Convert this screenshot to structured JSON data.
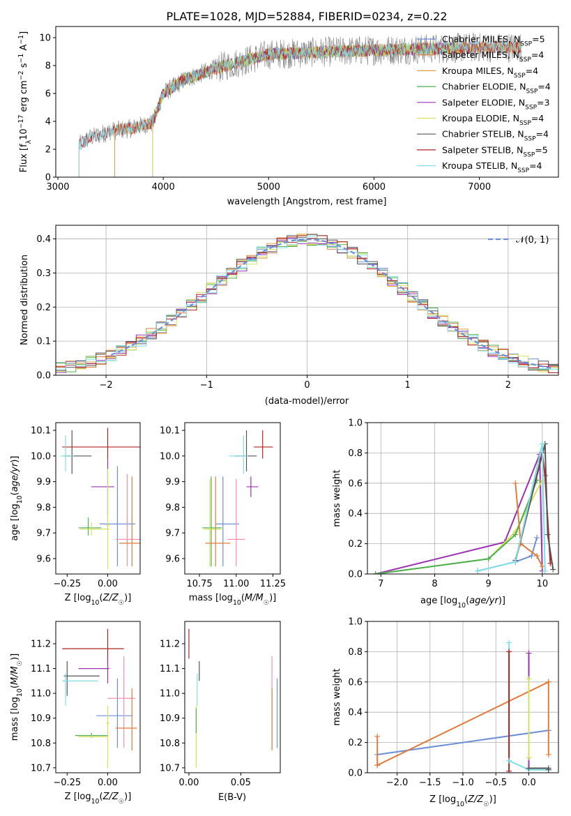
{
  "figure": {
    "title": "PLATE=1028, MJD=52884, FIBERID=0234, z=0.22",
    "colors": {
      "chabrier_miles": "#6a8fd8",
      "salpeter_miles": "#e07b39",
      "kroupa_miles": "#e0a040",
      "chabrier_elodie": "#4caf50",
      "salpeter_elodie": "#9b30b5",
      "kroupa_elodie": "#d4e157",
      "chabrier_stelib": "#555555",
      "salpeter_stelib": "#b22222",
      "kroupa_stelib": "#80deea",
      "pink": "#f48fb1",
      "grid": "#b0b0b0"
    }
  },
  "chart_data": [
    {
      "id": "spectrum",
      "type": "line",
      "xlabel": "wavelength [Angstrom, rest frame]",
      "ylabel": "Flux [fλ10⁻¹⁷ erg cm⁻² s⁻¹ A⁻¹]",
      "xlim": [
        2980,
        7750
      ],
      "ylim": [
        0,
        10.8
      ],
      "xticks": [
        "3000",
        "4000",
        "5000",
        "6000",
        "7000"
      ],
      "yticks": [
        "0",
        "2",
        "4",
        "6",
        "8",
        "10"
      ],
      "grid": false,
      "legend_position": "top-right",
      "legend": [
        {
          "label": "Chabrier MILES, N_SSP=5",
          "color": "chabrier_miles"
        },
        {
          "label": "Salpeter MILES, N_SSP=4",
          "color": "salpeter_miles"
        },
        {
          "label": "Kroupa MILES, N_SSP=4",
          "color": "kroupa_miles"
        },
        {
          "label": "Chabrier ELODIE, N_SSP=4",
          "color": "chabrier_elodie"
        },
        {
          "label": "Salpeter ELODIE, N_SSP=3",
          "color": "salpeter_elodie"
        },
        {
          "label": "Kroupa ELODIE, N_SSP=4",
          "color": "kroupa_elodie"
        },
        {
          "label": "Chabrier STELIB, N_SSP=4",
          "color": "chabrier_stelib"
        },
        {
          "label": "Salpeter STELIB, N_SSP=5",
          "color": "salpeter_stelib"
        },
        {
          "label": "Kroupa STELIB, N_SSP=4",
          "color": "kroupa_stelib"
        }
      ],
      "continuum": [
        [
          3200,
          2.3
        ],
        [
          3300,
          2.8
        ],
        [
          3500,
          3.3
        ],
        [
          3700,
          3.5
        ],
        [
          3900,
          3.9
        ],
        [
          4000,
          6.0
        ],
        [
          4200,
          7.0
        ],
        [
          4500,
          7.8
        ],
        [
          4800,
          8.4
        ],
        [
          5000,
          8.8
        ],
        [
          5300,
          8.9
        ],
        [
          5600,
          9.0
        ],
        [
          6000,
          9.1
        ],
        [
          6500,
          9.2
        ],
        [
          7000,
          9.3
        ],
        [
          7400,
          9.3
        ]
      ],
      "model_ranges": [
        {
          "color": "chabrier_miles",
          "x": [
            3540,
            7400
          ]
        },
        {
          "color": "salpeter_miles",
          "x": [
            3540,
            7400
          ]
        },
        {
          "color": "kroupa_miles",
          "x": [
            3540,
            7400
          ]
        },
        {
          "color": "chabrier_elodie",
          "x": [
            3900,
            6800
          ]
        },
        {
          "color": "salpeter_elodie",
          "x": [
            3900,
            6800
          ]
        },
        {
          "color": "kroupa_elodie",
          "x": [
            3900,
            6800
          ]
        },
        {
          "color": "salpeter_stelib",
          "x": [
            3200,
            7400
          ]
        },
        {
          "color": "kroupa_stelib",
          "x": [
            3200,
            7400
          ]
        }
      ]
    },
    {
      "id": "residuals",
      "type": "line",
      "xlabel": "(data-model)/error",
      "ylabel": "Normed distribution",
      "xlim": [
        -2.5,
        2.5
      ],
      "ylim": [
        0,
        0.44
      ],
      "xticks": [
        "−2",
        "−1",
        "0",
        "1",
        "2"
      ],
      "yticks": [
        "0.0",
        "0.1",
        "0.2",
        "0.3",
        "0.4"
      ],
      "grid": true,
      "legend_position": "top-right",
      "legend": [
        {
          "label": "𝒩(0, 1)",
          "color": "chabrier_miles",
          "style": "dashed"
        }
      ],
      "bin_width": 0.1,
      "histogram_colors": [
        "chabrier_miles",
        "salpeter_miles",
        "kroupa_miles",
        "chabrier_elodie",
        "salpeter_elodie",
        "kroupa_elodie",
        "chabrier_stelib",
        "salpeter_stelib",
        "kroupa_stelib"
      ]
    },
    {
      "id": "age-vs-z",
      "type": "scatter",
      "xlabel": "Z [log₁₀(Z/Z☉)]",
      "ylabel": "age  [log₁₀(age/yr)]",
      "xlim": [
        -0.32,
        0.2
      ],
      "ylim": [
        9.54,
        10.13
      ],
      "xticks": [
        "−0.25",
        "0.00"
      ],
      "yticks": [
        "9.6",
        "9.7",
        "9.8",
        "9.9",
        "10.0",
        "10.1"
      ],
      "grid": false,
      "points": [
        {
          "x": 0.0,
          "y": 10.035,
          "x_lo": -0.28,
          "x_hi": 0.2,
          "y_lo": 9.99,
          "y_hi": 10.11,
          "color": "salpeter_stelib"
        },
        {
          "x": -0.22,
          "y": 10.0,
          "x_lo": -0.27,
          "x_hi": -0.1,
          "y_lo": 9.93,
          "y_hi": 10.1,
          "color": "chabrier_stelib"
        },
        {
          "x": -0.26,
          "y": 10.0,
          "x_lo": -0.29,
          "x_hi": -0.21,
          "y_lo": 9.94,
          "y_hi": 10.08,
          "color": "kroupa_stelib"
        },
        {
          "x": 0.0,
          "y": 9.88,
          "x_lo": -0.1,
          "x_hi": 0.04,
          "y_lo": 9.77,
          "y_hi": 9.99,
          "color": "salpeter_elodie"
        },
        {
          "x": 0.06,
          "y": 9.735,
          "x_lo": -0.05,
          "x_hi": 0.17,
          "y_lo": 9.57,
          "y_hi": 9.96,
          "color": "chabrier_miles"
        },
        {
          "x": -0.12,
          "y": 9.72,
          "x_lo": -0.18,
          "x_hi": -0.04,
          "y_lo": 9.69,
          "y_hi": 9.76,
          "color": "chabrier_elodie"
        },
        {
          "x": -0.1,
          "y": 9.715,
          "x_lo": -0.17,
          "x_hi": 0.01,
          "y_lo": 9.69,
          "y_hi": 9.74,
          "color": "kroupa_elodie"
        },
        {
          "x": 0.0,
          "y": 9.73,
          "x_lo": -0.01,
          "x_hi": 0.01,
          "y_lo": 9.56,
          "y_hi": 9.95,
          "color": "kroupa_elodie"
        },
        {
          "x": 0.12,
          "y": 9.675,
          "x_lo": 0.05,
          "x_hi": 0.2,
          "y_lo": 9.57,
          "y_hi": 9.93,
          "color": "pink"
        },
        {
          "x": 0.15,
          "y": 9.66,
          "x_lo": 0.07,
          "x_hi": 0.2,
          "y_lo": 9.57,
          "y_hi": 9.92,
          "color": "salpeter_miles"
        }
      ]
    },
    {
      "id": "age-vs-mass",
      "type": "scatter",
      "xlabel": "mass [log₁₀(M/M☉)]",
      "ylabel": "",
      "xlim": [
        10.65,
        11.3
      ],
      "ylim": [
        9.54,
        10.13
      ],
      "xticks": [
        "10.75",
        "11.00",
        "11.25"
      ],
      "yticks": [
        "9.6",
        "9.7",
        "9.8",
        "9.9",
        "10.0",
        "10.1"
      ],
      "grid": false,
      "points": [
        {
          "x": 11.18,
          "y": 10.035,
          "x_lo": 11.12,
          "x_hi": 11.25,
          "y_lo": 9.99,
          "y_hi": 10.1,
          "color": "salpeter_stelib"
        },
        {
          "x": 11.07,
          "y": 10.0,
          "x_lo": 10.99,
          "x_hi": 11.14,
          "y_lo": 9.94,
          "y_hi": 10.1,
          "color": "chabrier_stelib"
        },
        {
          "x": 11.05,
          "y": 10.0,
          "x_lo": 10.95,
          "x_hi": 11.08,
          "y_lo": 9.93,
          "y_hi": 10.08,
          "color": "kroupa_stelib"
        },
        {
          "x": 11.1,
          "y": 9.88,
          "x_lo": 11.07,
          "x_hi": 11.15,
          "y_lo": 9.84,
          "y_hi": 9.92,
          "color": "salpeter_elodie"
        },
        {
          "x": 10.91,
          "y": 9.735,
          "x_lo": 10.86,
          "x_hi": 11.02,
          "y_lo": 9.57,
          "y_hi": 9.92,
          "color": "chabrier_miles"
        },
        {
          "x": 10.83,
          "y": 9.72,
          "x_lo": 10.77,
          "x_hi": 10.9,
          "y_lo": 9.57,
          "y_hi": 9.92,
          "color": "chabrier_elodie"
        },
        {
          "x": 10.82,
          "y": 9.715,
          "x_lo": 10.78,
          "x_hi": 10.9,
          "y_lo": 9.57,
          "y_hi": 9.91,
          "color": "kroupa_elodie"
        },
        {
          "x": 11.0,
          "y": 9.675,
          "x_lo": 10.94,
          "x_hi": 11.06,
          "y_lo": 9.57,
          "y_hi": 9.91,
          "color": "pink"
        },
        {
          "x": 10.86,
          "y": 9.66,
          "x_lo": 10.79,
          "x_hi": 10.96,
          "y_lo": 9.57,
          "y_hi": 9.92,
          "color": "salpeter_miles"
        }
      ]
    },
    {
      "id": "weight-vs-age",
      "type": "line",
      "xlabel": "age  [log₁₀(age/yr)]",
      "ylabel": "mass weight",
      "xlim": [
        6.75,
        10.3
      ],
      "ylim": [
        0,
        1
      ],
      "xticks": [
        "7",
        "8",
        "9",
        "10"
      ],
      "yticks": [
        "0.0",
        "0.2",
        "0.4",
        "0.6",
        "0.8",
        "1.0"
      ],
      "grid": true,
      "series": [
        {
          "color": "salpeter_elodie",
          "x": [
            6.9,
            9.3,
            9.95,
            10.0
          ],
          "y": [
            0.0,
            0.21,
            0.79,
            0.02
          ]
        },
        {
          "color": "kroupa_elodie",
          "x": [
            6.9,
            9.0,
            9.5,
            10.0
          ],
          "y": [
            0.0,
            0.1,
            0.28,
            0.62
          ]
        },
        {
          "color": "chabrier_elodie",
          "x": [
            6.9,
            9.0,
            9.5,
            9.9
          ],
          "y": [
            0.0,
            0.1,
            0.26,
            0.62
          ]
        },
        {
          "color": "chabrier_miles",
          "x": [
            8.8,
            9.5,
            9.8,
            9.9
          ],
          "y": [
            0.02,
            0.08,
            0.12,
            0.24
          ]
        },
        {
          "color": "salpeter_miles",
          "x": [
            9.5,
            9.6,
            9.9,
            10.0
          ],
          "y": [
            0.6,
            0.2,
            0.12,
            0.05
          ]
        },
        {
          "color": "salpeter_stelib",
          "x": [
            9.5,
            10.0,
            10.05,
            10.15
          ],
          "y": [
            0.08,
            0.8,
            0.65,
            0.07
          ]
        },
        {
          "color": "chabrier_stelib",
          "x": [
            9.5,
            10.05,
            10.1,
            10.2
          ],
          "y": [
            0.09,
            0.86,
            0.26,
            0.03
          ]
        },
        {
          "color": "kroupa_stelib",
          "x": [
            8.8,
            9.5,
            10.0,
            10.05
          ],
          "y": [
            0.02,
            0.08,
            0.86,
            0.02
          ]
        }
      ]
    },
    {
      "id": "mass-vs-z",
      "type": "scatter",
      "xlabel": "Z [log₁₀(Z/Z☉)]",
      "ylabel": "mass [log₁₀(M/M☉)]",
      "xlim": [
        -0.32,
        0.2
      ],
      "ylim": [
        10.68,
        11.29
      ],
      "xticks": [
        "−0.25",
        "0.00"
      ],
      "yticks": [
        "10.7",
        "10.8",
        "10.9",
        "11.0",
        "11.1",
        "11.2"
      ],
      "grid": false,
      "points": [
        {
          "x": 0.0,
          "y": 11.18,
          "x_lo": -0.28,
          "x_hi": 0.1,
          "y_lo": 11.12,
          "y_hi": 11.26,
          "color": "salpeter_stelib"
        },
        {
          "x": -0.25,
          "y": 11.07,
          "x_lo": -0.27,
          "x_hi": -0.05,
          "y_lo": 10.99,
          "y_hi": 11.13,
          "color": "chabrier_stelib"
        },
        {
          "x": -0.26,
          "y": 11.05,
          "x_lo": -0.28,
          "x_hi": -0.06,
          "y_lo": 10.95,
          "y_hi": 11.08,
          "color": "kroupa_stelib"
        },
        {
          "x": 0.0,
          "y": 11.1,
          "x_lo": -0.18,
          "x_hi": 0.01,
          "y_lo": 11.04,
          "y_hi": 11.15,
          "color": "salpeter_elodie"
        },
        {
          "x": 0.06,
          "y": 10.91,
          "x_lo": -0.07,
          "x_hi": 0.15,
          "y_lo": 10.78,
          "y_hi": 11.06,
          "color": "chabrier_miles"
        },
        {
          "x": -0.1,
          "y": 10.83,
          "x_lo": -0.2,
          "x_hi": 0.0,
          "y_lo": 10.82,
          "y_hi": 10.84,
          "color": "chabrier_elodie"
        },
        {
          "x": -0.1,
          "y": 10.825,
          "x_lo": -0.18,
          "x_hi": 0.0,
          "y_lo": 10.82,
          "y_hi": 10.83,
          "color": "kroupa_elodie"
        },
        {
          "x": 0.0,
          "y": 10.88,
          "x_lo": -0.01,
          "x_hi": 0.01,
          "y_lo": 10.7,
          "y_hi": 10.95,
          "color": "kroupa_elodie"
        },
        {
          "x": 0.1,
          "y": 10.98,
          "x_lo": 0.0,
          "x_hi": 0.17,
          "y_lo": 10.78,
          "y_hi": 11.15,
          "color": "pink"
        },
        {
          "x": 0.15,
          "y": 10.86,
          "x_lo": 0.05,
          "x_hi": 0.18,
          "y_lo": 10.77,
          "y_hi": 11.02,
          "color": "salpeter_miles"
        }
      ]
    },
    {
      "id": "mass-vs-ebv",
      "type": "scatter",
      "xlabel": "E(B-V)",
      "ylabel": "",
      "xlim": [
        -0.004,
        0.088
      ],
      "ylim": [
        10.68,
        11.29
      ],
      "xticks": [
        "0.00",
        "0.05"
      ],
      "yticks": [
        "10.7",
        "10.8",
        "10.9",
        "11.0",
        "11.1",
        "11.2"
      ],
      "grid": false,
      "points": [
        {
          "x": 0.0,
          "y": 11.18,
          "y_lo": 11.14,
          "y_hi": 11.26,
          "color": "salpeter_stelib"
        },
        {
          "x": 0.01,
          "y": 11.1,
          "y_lo": 11.05,
          "y_hi": 11.13,
          "color": "chabrier_stelib"
        },
        {
          "x": 0.008,
          "y": 11.05,
          "y_lo": 10.95,
          "y_hi": 11.08,
          "color": "kroupa_stelib"
        },
        {
          "x": 0.007,
          "y": 10.88,
          "y_lo": 10.7,
          "y_hi": 10.95,
          "color": "kroupa_elodie"
        },
        {
          "x": 0.007,
          "y": 10.92,
          "y_lo": 10.84,
          "y_hi": 10.94,
          "color": "chabrier_elodie"
        },
        {
          "x": 0.085,
          "y": 10.91,
          "y_lo": 10.78,
          "y_hi": 11.06,
          "color": "chabrier_miles"
        },
        {
          "x": 0.08,
          "y": 10.98,
          "y_lo": 10.78,
          "y_hi": 11.15,
          "color": "pink"
        },
        {
          "x": 0.08,
          "y": 10.86,
          "y_lo": 10.77,
          "y_hi": 11.02,
          "color": "salpeter_miles"
        }
      ]
    },
    {
      "id": "weight-vs-z",
      "type": "line",
      "xlabel": "Z [log₁₀(Z/Z☉)]",
      "ylabel": "mass weight",
      "xlim": [
        -2.45,
        0.45
      ],
      "ylim": [
        0,
        1
      ],
      "xticks": [
        "−2.0",
        "−1.5",
        "−1.0",
        "−0.5",
        "0.0"
      ],
      "yticks": [
        "0.0",
        "0.2",
        "0.4",
        "0.6",
        "0.8",
        "1.0"
      ],
      "grid": true,
      "series": [
        {
          "color": "chabrier_miles",
          "x": [
            -2.3,
            0.3
          ],
          "y": [
            0.12,
            0.28
          ]
        },
        {
          "color": "salpeter_miles",
          "x": [
            -2.3,
            0.3
          ],
          "y": [
            0.05,
            0.6
          ]
        },
        {
          "color": "salpeter_miles",
          "x": [
            -2.3,
            -2.3
          ],
          "y": [
            0.05,
            0.24
          ]
        },
        {
          "color": "salpeter_miles",
          "x": [
            0.3,
            0.3
          ],
          "y": [
            0.12,
            0.6
          ]
        },
        {
          "color": "kroupa_stelib",
          "x": [
            -0.3,
            -0.3
          ],
          "y": [
            0.08,
            0.86
          ]
        },
        {
          "color": "salpeter_stelib",
          "x": [
            -0.3,
            -0.3
          ],
          "y": [
            0.01,
            0.8
          ]
        },
        {
          "color": "salpeter_elodie",
          "x": [
            0.0,
            0.0
          ],
          "y": [
            0.02,
            0.79
          ]
        },
        {
          "color": "kroupa_elodie",
          "x": [
            0.0,
            0.0
          ],
          "y": [
            0.1,
            0.62
          ]
        },
        {
          "color": "kroupa_stelib",
          "x": [
            -0.3,
            0.0,
            0.3
          ],
          "y": [
            0.08,
            0.02,
            0.02
          ]
        },
        {
          "color": "chabrier_stelib",
          "x": [
            0.0,
            0.3,
            0.3
          ],
          "y": [
            0.03,
            0.03,
            0.02
          ]
        }
      ]
    }
  ]
}
